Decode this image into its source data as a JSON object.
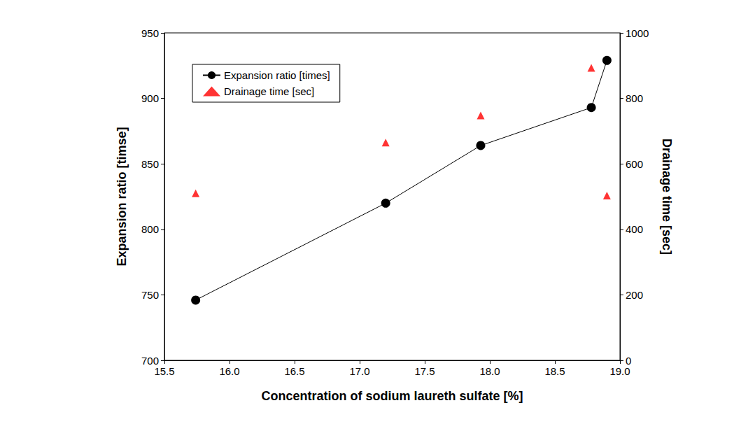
{
  "chart_data": {
    "type": "line",
    "x_label": "Concentration of sodium laureth sulfate [%]",
    "y_label": "Expansion ratio [timse]",
    "y2_label": "Drainage time [sec]",
    "x": [
      15.74,
      17.2,
      17.93,
      18.78,
      18.9
    ],
    "series": [
      {
        "name": "Expansion ratio [times]",
        "type": "line",
        "color": "#000000",
        "marker": "circle",
        "line_style": "solid",
        "values": [
          746,
          820,
          864,
          893,
          929
        ]
      },
      {
        "name": "Drainage time [sec]",
        "type": "scatter",
        "axis": "y2",
        "color": "#ff0000",
        "marker": "triangle",
        "values": [
          510,
          665,
          748,
          893,
          503
        ]
      }
    ],
    "xlim": [
      15.5,
      19.0
    ],
    "xticks": [
      15.5,
      {
        "value": 16,
        "label": "16.0"
      },
      16.5,
      {
        "value": 17,
        "label": "17.0"
      },
      17.5,
      {
        "value": 18,
        "label": "18.0"
      },
      18.5,
      {
        "value": 19,
        "label": "19.0"
      }
    ],
    "ylim": [
      700,
      950
    ],
    "yticks": [
      700,
      750,
      800,
      850,
      900,
      950
    ],
    "y2lim": [
      0,
      1000
    ],
    "y2ticks": [
      0,
      200,
      400,
      600,
      800,
      1000
    ],
    "grid": false,
    "legend": "upper left"
  }
}
